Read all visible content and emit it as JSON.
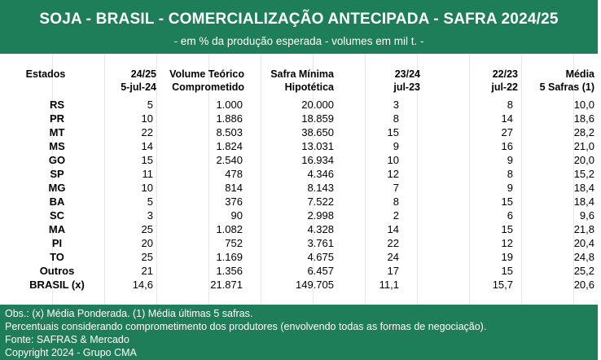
{
  "title": "SOJA - BRASIL - COMERCIALIZAÇÃO ANTECIPADA - SAFRA 2024/25",
  "subtitle": "- em % da produção esperada - volumes em mil t. -",
  "headers": {
    "estados": "Estados",
    "c1a": "24/25",
    "c1b": "5-jul-24",
    "c2a": "Volume Teórico",
    "c2b": "Comprometido",
    "c3a": "Safra Mínima",
    "c3b": "Hipotética",
    "c4a": "23/24",
    "c4b": "jul-23",
    "c5a": "22/23",
    "c5b": "jul-22",
    "c6a": "Média",
    "c6b": "5 Safras (1)"
  },
  "rows": [
    {
      "state": "RS",
      "c1": "5",
      "c2": "1.000",
      "c3": "20.000",
      "c4": "3",
      "c5": "8",
      "c6": "10,0"
    },
    {
      "state": "PR",
      "c1": "10",
      "c2": "1.886",
      "c3": "18.859",
      "c4": "8",
      "c5": "14",
      "c6": "18,6"
    },
    {
      "state": "MT",
      "c1": "22",
      "c2": "8.503",
      "c3": "38.650",
      "c4": "15",
      "c5": "27",
      "c6": "28,2"
    },
    {
      "state": "MS",
      "c1": "14",
      "c2": "1.824",
      "c3": "13.031",
      "c4": "9",
      "c5": "16",
      "c6": "21,0"
    },
    {
      "state": "GO",
      "c1": "15",
      "c2": "2.540",
      "c3": "16.934",
      "c4": "10",
      "c5": "9",
      "c6": "20,0"
    },
    {
      "state": "SP",
      "c1": "11",
      "c2": "478",
      "c3": "4.346",
      "c4": "12",
      "c5": "8",
      "c6": "15,2"
    },
    {
      "state": "MG",
      "c1": "10",
      "c2": "814",
      "c3": "8.143",
      "c4": "7",
      "c5": "9",
      "c6": "18,4"
    },
    {
      "state": "BA",
      "c1": "5",
      "c2": "376",
      "c3": "7.522",
      "c4": "8",
      "c5": "15",
      "c6": "18,4"
    },
    {
      "state": "SC",
      "c1": "3",
      "c2": "90",
      "c3": "2.998",
      "c4": "2",
      "c5": "6",
      "c6": "9,6"
    },
    {
      "state": "MA",
      "c1": "25",
      "c2": "1.082",
      "c3": "4.328",
      "c4": "14",
      "c5": "15",
      "c6": "21,8"
    },
    {
      "state": "PI",
      "c1": "20",
      "c2": "752",
      "c3": "3.761",
      "c4": "22",
      "c5": "12",
      "c6": "20,4"
    },
    {
      "state": "TO",
      "c1": "25",
      "c2": "1.169",
      "c3": "4.675",
      "c4": "24",
      "c5": "19",
      "c6": "24,8"
    },
    {
      "state": "Outros",
      "c1": "21",
      "c2": "1.356",
      "c3": "6.457",
      "c4": "17",
      "c5": "15",
      "c6": "25,2"
    },
    {
      "state": "BRASIL (x)",
      "c1": "14,6",
      "c2": "21.871",
      "c3": "149.705",
      "c4": "11,1",
      "c5": "15,7",
      "c6": "20,6"
    }
  ],
  "footer": {
    "line1": "Obs.: (x) Média Ponderada.  (1) Média últimas 5 safras.",
    "line2": "Percentuais considerando comprometimento dos produtores (envolvendo todas as formas de negociação).",
    "line3": "Fonte: SAFRAS & Mercado",
    "line4": "Copyright 2024 - Grupo CMA"
  },
  "colors": {
    "header_bg": "#1e7e5a",
    "header_text": "#ffffff"
  }
}
